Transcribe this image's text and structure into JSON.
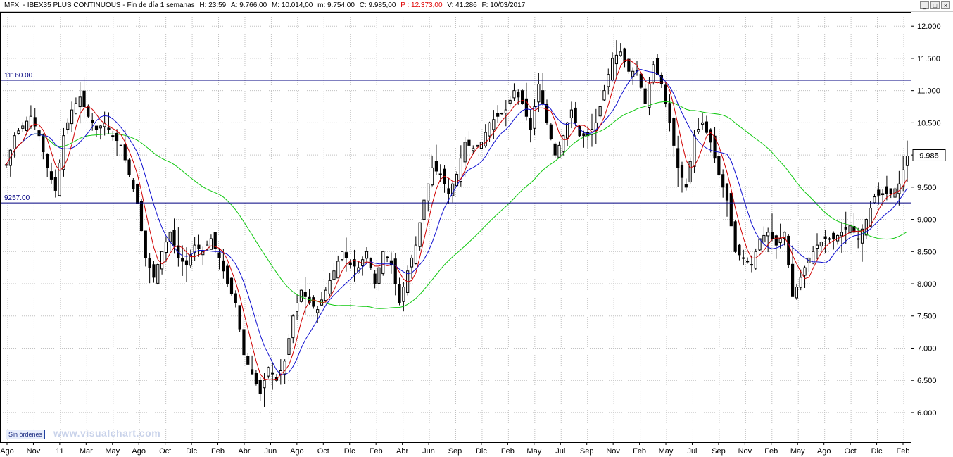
{
  "header": {
    "items": [
      "MFXI - IBEX35 PLUS CONTINUOUS - Fin de día 1 semanas",
      "H: 23:59",
      "A: 9.766,00",
      "M: 10.014,00",
      "m: 9.754,00",
      "C: 9.985,00",
      "P : 12.373,00",
      "V: 41.286",
      "F: 10/03/2017"
    ],
    "controls": [
      "_",
      "□",
      "×"
    ]
  },
  "colors": {
    "candles": "#000000",
    "ma_fast": "#d00000",
    "ma_mid": "#1010d0",
    "ma_slow": "#10c810",
    "level_lines": "#000080",
    "grid": "#c0c0c0",
    "header_red": "#e00000"
  },
  "badge": "Sin órdenes",
  "watermark": "www.visualchart.com",
  "chart_data": {
    "type": "line",
    "title": "MFXI - IBEX35 PLUS CONTINUOUS - Fin de día 1 semanas",
    "y_ticks": [
      "12.000",
      "11.500",
      "11.000",
      "10.500",
      "10.000",
      "9.500",
      "9.000",
      "8.500",
      "8.000",
      "7.500",
      "7.000",
      "6.500",
      "6.000"
    ],
    "y_tick_values": [
      12000,
      11500,
      11000,
      10500,
      10000,
      9500,
      9000,
      8500,
      8000,
      7500,
      7000,
      6500,
      6000
    ],
    "ylim": [
      5540,
      12210
    ],
    "x_labels": [
      "Ago",
      "Nov",
      "11",
      "Mar",
      "May",
      "Ago",
      "Oct",
      "Dic",
      "Feb",
      "Abr",
      "Jun",
      "Ago",
      "Oct",
      "Dic",
      "Feb",
      "Abr",
      "Jun",
      "Sep",
      "Dic",
      "Feb",
      "May",
      "Jul",
      "Sep",
      "Nov",
      "Feb",
      "May",
      "Jul",
      "Sep",
      "Nov",
      "Feb",
      "May",
      "Ago",
      "Oct",
      "Dic",
      "Feb"
    ],
    "grid": true,
    "last_value_label": "9.985",
    "last_value": 9985,
    "levels": [
      {
        "label": "11160.00",
        "value": 11160
      },
      {
        "label": "9257.00",
        "value": 9257
      }
    ],
    "series": [
      {
        "name": "",
        "kind": "close",
        "color": "#000000",
        "values": [
          [
            0,
            9850
          ],
          [
            2,
            10300
          ],
          [
            4,
            10450
          ],
          [
            6,
            10600
          ],
          [
            8,
            10300
          ],
          [
            10,
            9800
          ],
          [
            12,
            9450
          ],
          [
            14,
            10300
          ],
          [
            16,
            10700
          ],
          [
            18,
            10900
          ],
          [
            20,
            10600
          ],
          [
            22,
            10400
          ],
          [
            24,
            10500
          ],
          [
            26,
            10300
          ],
          [
            28,
            10150
          ],
          [
            30,
            9700
          ],
          [
            32,
            9250
          ],
          [
            34,
            8400
          ],
          [
            36,
            8100
          ],
          [
            38,
            8500
          ],
          [
            40,
            8800
          ],
          [
            42,
            8400
          ],
          [
            44,
            8300
          ],
          [
            46,
            8600
          ],
          [
            48,
            8500
          ],
          [
            50,
            8700
          ],
          [
            52,
            8400
          ],
          [
            54,
            8000
          ],
          [
            56,
            7700
          ],
          [
            58,
            6900
          ],
          [
            60,
            6600
          ],
          [
            62,
            6300
          ],
          [
            64,
            6700
          ],
          [
            66,
            6500
          ],
          [
            68,
            6800
          ],
          [
            70,
            7500
          ],
          [
            72,
            7900
          ],
          [
            74,
            7700
          ],
          [
            76,
            7600
          ],
          [
            78,
            7900
          ],
          [
            80,
            8200
          ],
          [
            82,
            8500
          ],
          [
            84,
            8300
          ],
          [
            86,
            8250
          ],
          [
            88,
            8500
          ],
          [
            90,
            8000
          ],
          [
            92,
            8500
          ],
          [
            94,
            8300
          ],
          [
            96,
            7700
          ],
          [
            98,
            8200
          ],
          [
            100,
            8600
          ],
          [
            102,
            9300
          ],
          [
            104,
            9800
          ],
          [
            106,
            9700
          ],
          [
            108,
            9400
          ],
          [
            110,
            9700
          ],
          [
            112,
            10200
          ],
          [
            114,
            10100
          ],
          [
            116,
            10200
          ],
          [
            118,
            10500
          ],
          [
            120,
            10600
          ],
          [
            122,
            10700
          ],
          [
            124,
            11000
          ],
          [
            126,
            10800
          ],
          [
            128,
            10400
          ],
          [
            130,
            11100
          ],
          [
            132,
            10500
          ],
          [
            134,
            10000
          ],
          [
            136,
            10300
          ],
          [
            138,
            10700
          ],
          [
            140,
            10300
          ],
          [
            142,
            10300
          ],
          [
            144,
            10500
          ],
          [
            146,
            11000
          ],
          [
            148,
            11500
          ],
          [
            150,
            11600
          ],
          [
            152,
            11300
          ],
          [
            154,
            11300
          ],
          [
            156,
            10800
          ],
          [
            158,
            11400
          ],
          [
            160,
            11100
          ],
          [
            162,
            10500
          ],
          [
            164,
            9800
          ],
          [
            166,
            9500
          ],
          [
            168,
            10300
          ],
          [
            170,
            10500
          ],
          [
            172,
            10200
          ],
          [
            174,
            9700
          ],
          [
            176,
            9300
          ],
          [
            178,
            8500
          ],
          [
            180,
            8400
          ],
          [
            182,
            8300
          ],
          [
            184,
            8700
          ],
          [
            186,
            8800
          ],
          [
            188,
            8600
          ],
          [
            190,
            8800
          ],
          [
            192,
            7800
          ],
          [
            194,
            8100
          ],
          [
            196,
            8400
          ],
          [
            198,
            8600
          ],
          [
            200,
            8700
          ],
          [
            202,
            8700
          ],
          [
            204,
            8800
          ],
          [
            206,
            8900
          ],
          [
            208,
            8700
          ],
          [
            210,
            9000
          ],
          [
            212,
            9350
          ],
          [
            214,
            9400
          ],
          [
            216,
            9400
          ],
          [
            218,
            9550
          ],
          [
            220,
            9985
          ]
        ]
      },
      {
        "name": "",
        "kind": "ma_fast",
        "color": "#d00000"
      },
      {
        "name": "",
        "kind": "ma_mid",
        "color": "#1010d0"
      },
      {
        "name": "",
        "kind": "ma_slow",
        "color": "#10c810"
      }
    ]
  }
}
